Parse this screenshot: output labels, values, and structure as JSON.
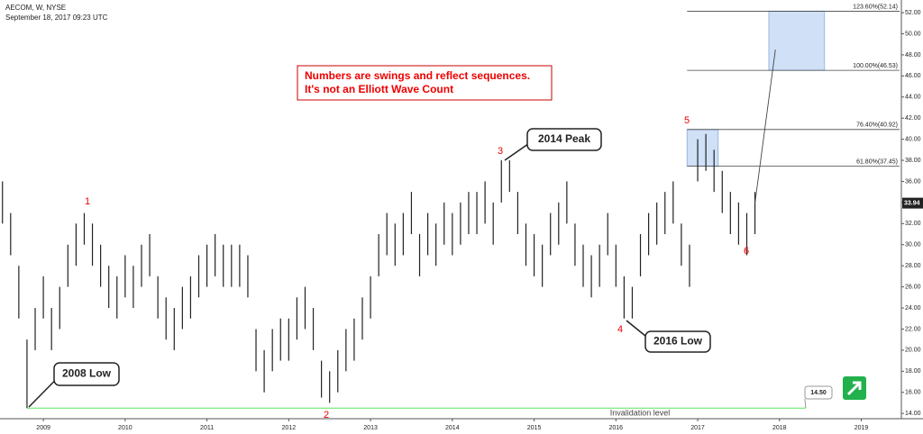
{
  "chart_data": {
    "type": "ohlc",
    "title": "AECOM, W, NYSE",
    "subtitle": "September 18, 2017 09:23 UTC",
    "note": [
      "Numbers are swings and reflect sequences.",
      "It's not an Elliott Wave Count"
    ],
    "x": [
      2008.5,
      2008.6,
      2008.7,
      2008.8,
      2008.9,
      2009.0,
      2009.1,
      2009.2,
      2009.3,
      2009.4,
      2009.5,
      2009.6,
      2009.7,
      2009.8,
      2009.9,
      2010.0,
      2010.1,
      2010.2,
      2010.3,
      2010.4,
      2010.5,
      2010.6,
      2010.7,
      2010.8,
      2010.9,
      2011.0,
      2011.1,
      2011.2,
      2011.3,
      2011.4,
      2011.5,
      2011.6,
      2011.7,
      2011.8,
      2011.9,
      2012.0,
      2012.1,
      2012.2,
      2012.3,
      2012.4,
      2012.5,
      2012.6,
      2012.7,
      2012.8,
      2012.9,
      2013.0,
      2013.1,
      2013.2,
      2013.3,
      2013.4,
      2013.5,
      2013.6,
      2013.7,
      2013.8,
      2013.9,
      2014.0,
      2014.1,
      2014.2,
      2014.3,
      2014.4,
      2014.5,
      2014.6,
      2014.7,
      2014.8,
      2014.9,
      2015.0,
      2015.1,
      2015.2,
      2015.3,
      2015.4,
      2015.5,
      2015.6,
      2015.7,
      2015.8,
      2015.9,
      2016.0,
      2016.1,
      2016.2,
      2016.3,
      2016.4,
      2016.5,
      2016.6,
      2016.7,
      2016.8,
      2016.9,
      2017.0,
      2017.1,
      2017.2,
      2017.3,
      2017.4,
      2017.5,
      2017.6,
      2017.7
    ],
    "high": [
      36,
      33,
      28,
      21,
      24,
      27,
      24,
      26,
      30,
      32,
      33,
      32,
      30,
      28,
      27,
      29,
      28,
      30,
      31,
      27,
      25,
      24,
      26,
      27,
      29,
      30,
      31,
      30,
      30,
      30,
      29,
      22,
      20,
      22,
      23,
      23,
      25,
      26,
      24,
      19,
      18,
      20,
      22,
      23,
      25,
      27,
      31,
      33,
      32,
      33,
      35,
      31,
      33,
      32,
      34,
      33,
      34,
      35,
      35,
      36,
      34,
      38,
      38,
      35,
      32,
      31,
      30,
      33,
      34,
      36,
      32,
      30,
      29,
      30,
      33,
      30,
      27,
      26,
      31,
      33,
      34,
      35,
      36,
      32,
      30,
      40,
      40.5,
      39,
      37,
      35,
      34,
      33,
      35
    ],
    "low": [
      32,
      29,
      23,
      14.5,
      20,
      23,
      20,
      22,
      26,
      28,
      30,
      28,
      26,
      24,
      23,
      25,
      24,
      26,
      27,
      23,
      21,
      20,
      22,
      23,
      25,
      26,
      27,
      26,
      26,
      26,
      25,
      18,
      16,
      18,
      19,
      19,
      21,
      22,
      20,
      15.5,
      15,
      16,
      18,
      19,
      21,
      23,
      27,
      29,
      28,
      29,
      31,
      27,
      29,
      28,
      30,
      29,
      30,
      31,
      31,
      32,
      30,
      34,
      35,
      31,
      28,
      27,
      26,
      29,
      30,
      32,
      28,
      26,
      25,
      26,
      29,
      26,
      23,
      23,
      27,
      29,
      30,
      31,
      32,
      28,
      26,
      36,
      37,
      35,
      33,
      31,
      30,
      29,
      31
    ],
    "color": "#222222",
    "last_price": 33.94,
    "projection": {
      "x": [
        2017.7,
        2017.95
      ],
      "y": [
        33.94,
        48.5
      ]
    },
    "fib_levels": [
      {
        "value": 52.14,
        "label": "123.60%(52.14)"
      },
      {
        "value": 46.53,
        "label": "100.00%(46.53)"
      },
      {
        "value": 40.92,
        "label": "76.40%(40.92)"
      },
      {
        "value": 37.45,
        "label": "61.80%(37.45)"
      }
    ],
    "invalidation": {
      "value": 14.5,
      "label": "14.50",
      "text": "Invalidation level"
    },
    "swings": [
      "1",
      "2",
      "3",
      "4",
      "5",
      "6"
    ],
    "callouts": [
      "2008 Low",
      "2014 Peak",
      "2016 Low"
    ],
    "xlim": [
      2008.47,
      2019.49
    ],
    "ylim": [
      13.5,
      53.2
    ],
    "xticks": [
      2009,
      2010,
      2011,
      2012,
      2013,
      2014,
      2015,
      2016,
      2017,
      2018,
      2019
    ],
    "yticks": [
      {
        "value": 14,
        "label": "14.00"
      },
      {
        "value": 16,
        "label": "16.00"
      },
      {
        "value": 18,
        "label": "18.00"
      },
      {
        "value": 20,
        "label": "20.00"
      },
      {
        "value": 22,
        "label": "22.00"
      },
      {
        "value": 24,
        "label": "24.00"
      },
      {
        "value": 26,
        "label": "26.00"
      },
      {
        "value": 28,
        "label": "28.00"
      },
      {
        "value": 30,
        "label": "30.00"
      },
      {
        "value": 32,
        "label": "32.00"
      },
      {
        "value": 34,
        "label": "34.00"
      },
      {
        "value": 36,
        "label": "36.00"
      },
      {
        "value": 38,
        "label": "38.00"
      },
      {
        "value": 40,
        "label": "40.00"
      },
      {
        "value": 42,
        "label": "42.00"
      },
      {
        "value": 44,
        "label": "44.00"
      },
      {
        "value": 46,
        "label": "46.00"
      },
      {
        "value": 48,
        "label": "48.00"
      },
      {
        "value": 50,
        "label": "50.00"
      },
      {
        "value": 52,
        "label": "52.00"
      }
    ]
  }
}
